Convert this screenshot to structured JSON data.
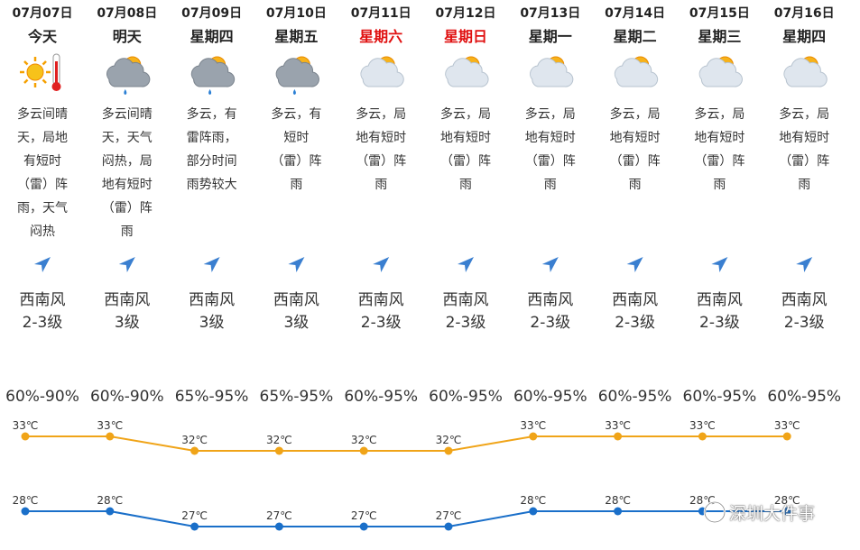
{
  "days": [
    {
      "date": "07月07日",
      "weekday": "今天",
      "desc": "多云间晴天，局地有短时（雷）阵雨，天气闷热",
      "wind_dir": "西南风",
      "wind_level": "2-3级",
      "humidity": "60%-90%",
      "high": {
        "value": 33,
        "label": "33℃"
      },
      "low": {
        "value": 28,
        "label": "28℃"
      }
    },
    {
      "date": "07月08日",
      "weekday": "明天",
      "desc": "多云间晴天，天气闷热，局地有短时（雷）阵雨",
      "wind_dir": "西南风",
      "wind_level": "3级",
      "humidity": "60%-90%",
      "high": {
        "value": 33,
        "label": "33℃"
      },
      "low": {
        "value": 28,
        "label": "28℃"
      }
    },
    {
      "date": "07月09日",
      "weekday": "星期四",
      "desc": "多云，有雷阵雨，部分时间雨势较大",
      "wind_dir": "西南风",
      "wind_level": "3级",
      "humidity": "65%-95%",
      "high": {
        "value": 32,
        "label": "32℃"
      },
      "low": {
        "value": 27,
        "label": "27℃"
      }
    },
    {
      "date": "07月10日",
      "weekday": "星期五",
      "desc": "多云，有短时（雷）阵雨",
      "wind_dir": "西南风",
      "wind_level": "3级",
      "humidity": "65%-95%",
      "high": {
        "value": 32,
        "label": "32℃"
      },
      "low": {
        "value": 27,
        "label": "27℃"
      }
    },
    {
      "date": "07月11日",
      "weekday": "星期六",
      "desc": "多云，局地有短时（雷）阵雨",
      "wind_dir": "西南风",
      "wind_level": "2-3级",
      "humidity": "60%-95%",
      "high": {
        "value": 32,
        "label": "32℃"
      },
      "low": {
        "value": 27,
        "label": "27℃"
      }
    },
    {
      "date": "07月12日",
      "weekday": "星期日",
      "desc": "多云，局地有短时（雷）阵雨",
      "wind_dir": "西南风",
      "wind_level": "2-3级",
      "humidity": "60%-95%",
      "high": {
        "value": 32,
        "label": "32℃"
      },
      "low": {
        "value": 27,
        "label": "27℃"
      }
    },
    {
      "date": "07月13日",
      "weekday": "星期一",
      "desc": "多云，局地有短时（雷）阵雨",
      "wind_dir": "西南风",
      "wind_level": "2-3级",
      "humidity": "60%-95%",
      "high": {
        "value": 33,
        "label": "33℃"
      },
      "low": {
        "value": 28,
        "label": "28℃"
      }
    },
    {
      "date": "07月14日",
      "weekday": "星期二",
      "desc": "多云，局地有短时（雷）阵雨",
      "wind_dir": "西南风",
      "wind_level": "2-3级",
      "humidity": "60%-95%",
      "high": {
        "value": 33,
        "label": "33℃"
      },
      "low": {
        "value": 28,
        "label": "28℃"
      }
    },
    {
      "date": "07月15日",
      "weekday": "星期三",
      "desc": "多云，局地有短时（雷）阵雨",
      "wind_dir": "西南风",
      "wind_level": "2-3级",
      "humidity": "60%-95%",
      "high": {
        "value": 33,
        "label": "33℃"
      },
      "low": {
        "value": 28,
        "label": "28℃"
      }
    },
    {
      "date": "07月16日",
      "weekday": "星期四",
      "desc": "多云，局地有短时（雷）阵雨",
      "wind_dir": "西南风",
      "wind_level": "2-3级",
      "humidity": "60%-95%",
      "high": {
        "value": 33,
        "label": "33℃"
      },
      "low": {
        "value": 28,
        "label": "28℃"
      }
    }
  ],
  "watermark": "深圳大件事"
}
